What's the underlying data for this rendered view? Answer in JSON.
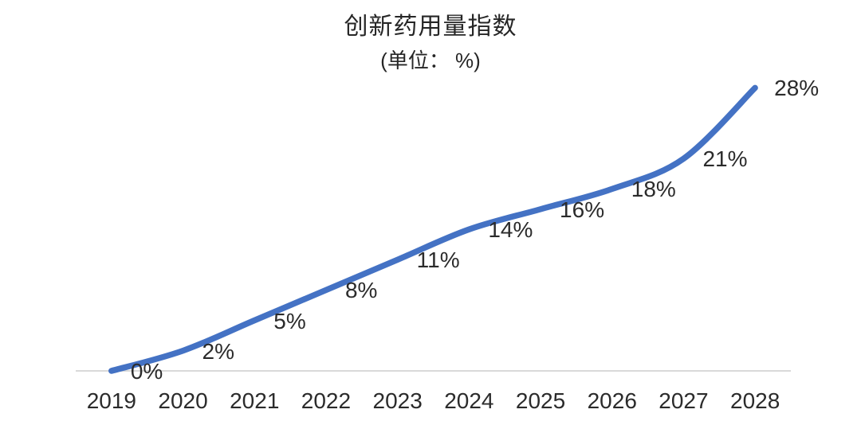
{
  "chart": {
    "title": "创新药用量指数",
    "subtitle": "(单位： %)"
  },
  "chart_data": {
    "type": "line",
    "title": "创新药用量指数",
    "subtitle": "(单位： %)",
    "categories": [
      "2019",
      "2020",
      "2021",
      "2022",
      "2023",
      "2024",
      "2025",
      "2026",
      "2027",
      "2028"
    ],
    "series": [
      {
        "name": "创新药用量指数",
        "values": [
          0,
          2,
          5,
          8,
          11,
          14,
          16,
          18,
          21,
          28
        ]
      }
    ],
    "data_labels": [
      "0%",
      "2%",
      "5%",
      "8%",
      "11%",
      "14%",
      "16%",
      "18%",
      "21%",
      "28%"
    ],
    "xlabel": "",
    "ylabel": "",
    "ylim": [
      0,
      28
    ],
    "grid": false,
    "legend": "none",
    "smoothed_line": true,
    "line_color": "#4472C4",
    "axis_color": "#D9D9D9",
    "text_color": "#262626"
  }
}
